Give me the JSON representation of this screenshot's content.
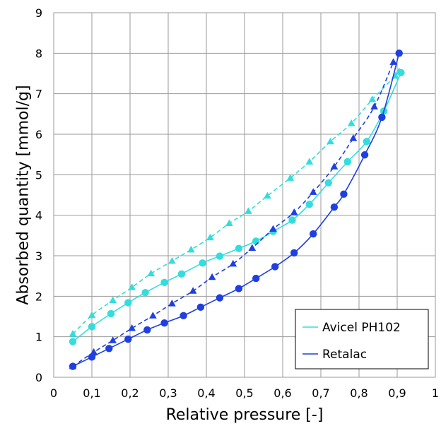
{
  "chart_data": {
    "type": "scatter",
    "xlabel": "Relative pressure [-]",
    "ylabel": "Absorbed quantity [mmol/g]",
    "xlim": [
      0,
      1
    ],
    "ylim": [
      0,
      9
    ],
    "x_ticks": [
      0,
      0.1,
      0.2,
      0.3,
      0.4,
      0.5,
      0.6,
      0.7,
      0.8,
      0.9,
      1
    ],
    "x_tick_labels": [
      "0",
      "0,1",
      "0,2",
      "0,3",
      "0,4",
      "0,5",
      "0,6",
      "0,7",
      "0,8",
      "0,9",
      "1"
    ],
    "y_ticks": [
      0,
      1,
      2,
      3,
      4,
      5,
      6,
      7,
      8,
      9
    ],
    "y_tick_labels": [
      "0",
      "1",
      "2",
      "3",
      "4",
      "5",
      "6",
      "7",
      "8",
      "9"
    ],
    "grid": true,
    "legend": {
      "position": "bottom-right",
      "entries": [
        "Avicel PH102",
        "Retalac"
      ]
    },
    "series": [
      {
        "name": "Avicel PH102",
        "color": "#33dddd",
        "adsorption": {
          "x": [
            0.05,
            0.1,
            0.15,
            0.195,
            0.24,
            0.29,
            0.335,
            0.39,
            0.435,
            0.485,
            0.53,
            0.575,
            0.625,
            0.67,
            0.72,
            0.77,
            0.82,
            0.865,
            0.91
          ],
          "y": [
            0.88,
            1.25,
            1.57,
            1.84,
            2.09,
            2.34,
            2.55,
            2.82,
            2.99,
            3.18,
            3.36,
            3.6,
            3.88,
            4.27,
            4.8,
            5.32,
            5.82,
            6.57,
            7.52
          ]
        },
        "desorption": {
          "x": [
            0.05,
            0.1,
            0.155,
            0.205,
            0.255,
            0.31,
            0.36,
            0.41,
            0.46,
            0.51,
            0.56,
            0.62,
            0.67,
            0.725,
            0.78,
            0.835,
            0.895,
            0.905
          ],
          "y": [
            1.07,
            1.53,
            1.9,
            2.22,
            2.56,
            2.87,
            3.15,
            3.45,
            3.8,
            4.1,
            4.48,
            4.92,
            5.32,
            5.82,
            6.27,
            6.86,
            7.44,
            7.55
          ]
        }
      },
      {
        "name": "Retalac",
        "color": "#1f3fe0",
        "adsorption": {
          "x": [
            0.05,
            0.1,
            0.145,
            0.195,
            0.245,
            0.29,
            0.34,
            0.385,
            0.435,
            0.485,
            0.53,
            0.58,
            0.63,
            0.68,
            0.735,
            0.76,
            0.815,
            0.86,
            0.905
          ],
          "y": [
            0.27,
            0.5,
            0.71,
            0.94,
            1.17,
            1.34,
            1.52,
            1.73,
            1.96,
            2.19,
            2.44,
            2.73,
            3.07,
            3.54,
            4.2,
            4.52,
            5.49,
            6.42,
            8.0
          ]
        },
        "desorption": {
          "x": [
            0.05,
            0.105,
            0.155,
            0.205,
            0.26,
            0.31,
            0.365,
            0.415,
            0.47,
            0.52,
            0.575,
            0.63,
            0.68,
            0.735,
            0.785,
            0.84,
            0.89
          ],
          "y": [
            0.27,
            0.62,
            0.91,
            1.21,
            1.52,
            1.82,
            2.13,
            2.47,
            2.8,
            3.19,
            3.66,
            4.07,
            4.57,
            5.2,
            5.9,
            6.68,
            7.78
          ]
        }
      }
    ]
  }
}
